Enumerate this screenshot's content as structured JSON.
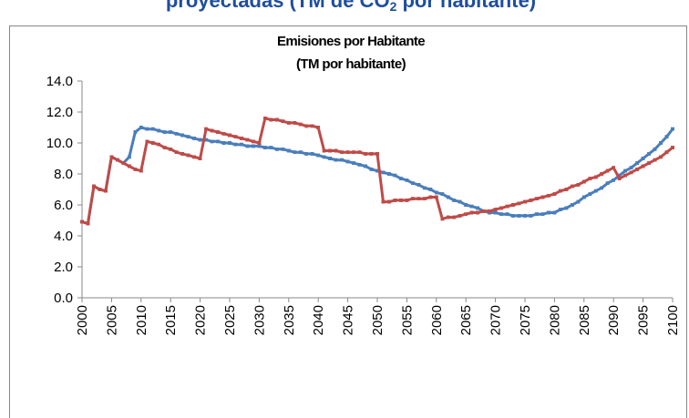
{
  "heading": {
    "text": "proyectadas (TM de CO",
    "subscript": "2",
    "text_after": " por habitante)"
  },
  "chart_data": {
    "type": "line",
    "title": "Emisiones por Habitante",
    "subtitle": "(TM por habitante)",
    "x": [
      2000,
      2001,
      2002,
      2003,
      2004,
      2005,
      2006,
      2007,
      2008,
      2009,
      2010,
      2011,
      2012,
      2013,
      2014,
      2015,
      2016,
      2017,
      2018,
      2019,
      2020,
      2021,
      2022,
      2023,
      2024,
      2025,
      2026,
      2027,
      2028,
      2029,
      2030,
      2031,
      2032,
      2033,
      2034,
      2035,
      2036,
      2037,
      2038,
      2039,
      2040,
      2041,
      2042,
      2043,
      2044,
      2045,
      2046,
      2047,
      2048,
      2049,
      2050,
      2051,
      2052,
      2053,
      2054,
      2055,
      2056,
      2057,
      2058,
      2059,
      2060,
      2061,
      2062,
      2063,
      2064,
      2065,
      2066,
      2067,
      2068,
      2069,
      2070,
      2071,
      2072,
      2073,
      2074,
      2075,
      2076,
      2077,
      2078,
      2079,
      2080,
      2081,
      2082,
      2083,
      2084,
      2085,
      2086,
      2087,
      2088,
      2089,
      2090,
      2091,
      2092,
      2093,
      2094,
      2095,
      2096,
      2097,
      2098,
      2099,
      2100
    ],
    "series": [
      {
        "color": "#4a7ebb",
        "values": [
          4.9,
          4.8,
          7.2,
          7.0,
          6.9,
          9.1,
          8.9,
          8.7,
          9.1,
          10.7,
          11.0,
          10.9,
          10.9,
          10.8,
          10.7,
          10.7,
          10.6,
          10.5,
          10.4,
          10.3,
          10.2,
          10.2,
          10.1,
          10.1,
          10.0,
          10.0,
          9.9,
          9.9,
          9.8,
          9.8,
          9.8,
          9.7,
          9.7,
          9.6,
          9.6,
          9.5,
          9.4,
          9.4,
          9.3,
          9.3,
          9.2,
          9.1,
          9.0,
          8.9,
          8.9,
          8.8,
          8.7,
          8.6,
          8.5,
          8.3,
          8.2,
          8.1,
          8.0,
          7.9,
          7.7,
          7.6,
          7.4,
          7.3,
          7.1,
          7.0,
          6.8,
          6.7,
          6.5,
          6.3,
          6.2,
          6.0,
          5.9,
          5.8,
          5.6,
          5.5,
          5.5,
          5.4,
          5.4,
          5.3,
          5.3,
          5.3,
          5.3,
          5.4,
          5.4,
          5.5,
          5.5,
          5.7,
          5.8,
          6.0,
          6.2,
          6.5,
          6.7,
          6.9,
          7.1,
          7.4,
          7.6,
          7.9,
          8.2,
          8.4,
          8.7,
          9.0,
          9.3,
          9.6,
          10.0,
          10.4,
          10.9
        ]
      },
      {
        "color": "#be4b48",
        "values": [
          4.9,
          4.8,
          7.2,
          7.0,
          6.9,
          9.1,
          8.9,
          8.7,
          8.5,
          8.3,
          8.2,
          10.1,
          10.0,
          9.9,
          9.7,
          9.6,
          9.4,
          9.3,
          9.2,
          9.1,
          9.0,
          10.9,
          10.8,
          10.7,
          10.6,
          10.5,
          10.4,
          10.3,
          10.2,
          10.1,
          10.0,
          11.6,
          11.5,
          11.5,
          11.4,
          11.3,
          11.3,
          11.2,
          11.1,
          11.1,
          11.0,
          9.5,
          9.5,
          9.5,
          9.4,
          9.4,
          9.4,
          9.4,
          9.3,
          9.3,
          9.3,
          6.2,
          6.2,
          6.3,
          6.3,
          6.3,
          6.4,
          6.4,
          6.4,
          6.5,
          6.5,
          5.1,
          5.2,
          5.2,
          5.3,
          5.4,
          5.5,
          5.5,
          5.6,
          5.6,
          5.7,
          5.8,
          5.9,
          6.0,
          6.1,
          6.2,
          6.3,
          6.4,
          6.5,
          6.6,
          6.7,
          6.9,
          7.0,
          7.2,
          7.3,
          7.5,
          7.7,
          7.8,
          8.0,
          8.2,
          8.4,
          7.7,
          7.9,
          8.1,
          8.3,
          8.5,
          8.7,
          8.9,
          9.1,
          9.4,
          9.7
        ]
      }
    ],
    "xlim": [
      2000,
      2100
    ],
    "xticks": [
      2000,
      2005,
      2010,
      2015,
      2020,
      2025,
      2030,
      2035,
      2040,
      2045,
      2050,
      2055,
      2060,
      2065,
      2070,
      2075,
      2080,
      2085,
      2090,
      2095,
      2100
    ],
    "ylim": [
      0,
      14
    ],
    "yticks": [
      {
        "value": 0,
        "label": "0.0"
      },
      {
        "value": 2,
        "label": "2.0"
      },
      {
        "value": 4,
        "label": "4.0"
      },
      {
        "value": 6,
        "label": "6.0"
      },
      {
        "value": 8,
        "label": "8.0"
      },
      {
        "value": 10,
        "label": "10.0"
      },
      {
        "value": 12,
        "label": "12.0"
      },
      {
        "value": 14,
        "label": "14.0"
      }
    ],
    "grid": false
  }
}
